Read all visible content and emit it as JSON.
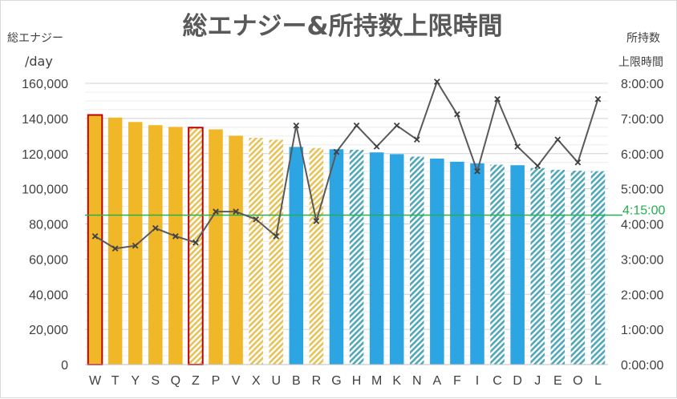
{
  "chart_data": {
    "type": "bar",
    "title": "総エナジー&所持数上限時間",
    "ylabel_left_line1": "総エナジー",
    "ylabel_left_line2": "/day",
    "ylabel_right_line1": "所持数",
    "ylabel_right_line2": "上限時間",
    "ylim": [
      0,
      160000
    ],
    "y2lim": [
      0,
      8
    ],
    "y_ticks": [
      "0",
      "20,000",
      "40,000",
      "60,000",
      "80,000",
      "100,000",
      "120,000",
      "140,000",
      "160,000"
    ],
    "y2_ticks": [
      "0:00:00",
      "1:00:00",
      "2:00:00",
      "3:00:00",
      "4:00:00",
      "5:00:00",
      "6:00:00",
      "7:00:00",
      "8:00:00"
    ],
    "grid": true,
    "categories": [
      "W",
      "T",
      "Y",
      "S",
      "Q",
      "Z",
      "P",
      "V",
      "X",
      "U",
      "B",
      "R",
      "G",
      "H",
      "M",
      "K",
      "N",
      "A",
      "F",
      "I",
      "C",
      "D",
      "J",
      "E",
      "O",
      "L"
    ],
    "series": [
      {
        "kind": "bar",
        "values": [
          142000,
          140500,
          138000,
          136200,
          135200,
          134800,
          133800,
          130200,
          129000,
          127900,
          123800,
          123200,
          122500,
          122200,
          120700,
          119700,
          118300,
          117200,
          115400,
          114500,
          113700,
          113400,
          111800,
          110800,
          110300,
          110000
        ],
        "colors": [
          "#f0b729",
          "#f0b729",
          "#f0b729",
          "#f0b729",
          "#f0b729",
          "#f0b729",
          "#f0b729",
          "#f0b729",
          "#f0b729",
          "#f0b729",
          "#2da5e3",
          "#f0b729",
          "#2da5e3",
          "#2da5e3",
          "#2da5e3",
          "#2da5e3",
          "#2da5e3",
          "#2da5e3",
          "#2da5e3",
          "#2da5e3",
          "#2da5e3",
          "#2da5e3",
          "#2da5e3",
          "#2da5e3",
          "#2da5e3",
          "#2da5e3"
        ],
        "hatched": [
          false,
          false,
          false,
          false,
          false,
          true,
          false,
          false,
          true,
          true,
          false,
          true,
          false,
          true,
          false,
          false,
          true,
          false,
          false,
          false,
          true,
          false,
          true,
          true,
          true,
          true
        ],
        "red_outline": [
          true,
          false,
          false,
          false,
          false,
          true,
          false,
          false,
          false,
          false,
          false,
          false,
          false,
          false,
          false,
          false,
          false,
          false,
          false,
          false,
          false,
          false,
          false,
          false,
          false,
          false
        ]
      },
      {
        "kind": "line",
        "axis": "right",
        "color": "#595959",
        "values": [
          3.65,
          3.3,
          3.38,
          3.88,
          3.65,
          3.47,
          4.35,
          4.35,
          4.13,
          3.65,
          6.8,
          4.08,
          6.05,
          6.8,
          6.2,
          6.8,
          6.4,
          8.05,
          7.12,
          5.5,
          7.55,
          6.2,
          5.65,
          6.4,
          5.75,
          7.55
        ]
      }
    ],
    "reference_line": {
      "label": "4:15:00",
      "value_hours": 4.25,
      "color": "#22b14c"
    }
  }
}
